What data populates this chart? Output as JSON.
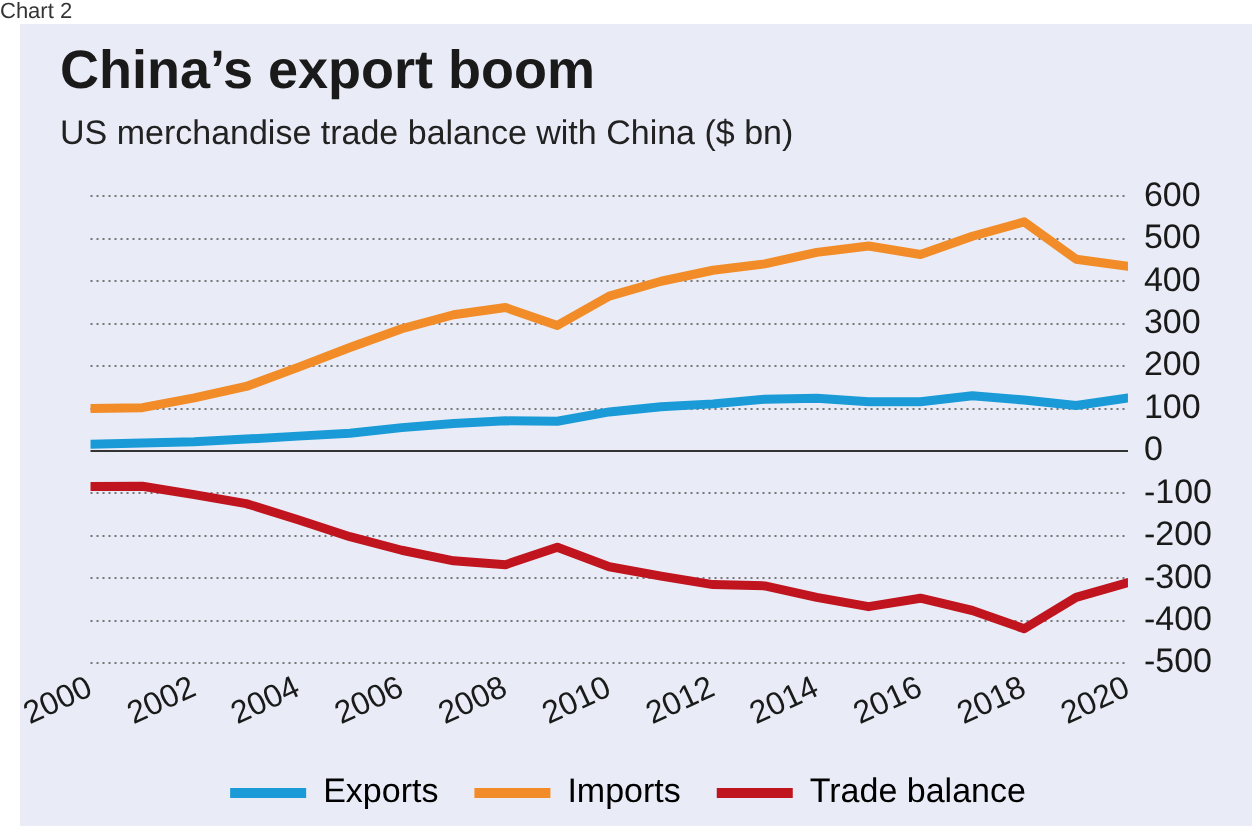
{
  "chart_data": {
    "type": "line",
    "title": "China’s export boom",
    "subtitle": "US merchandise trade balance with China ($ bn)",
    "annotations": [
      "Chart 2"
    ],
    "x": [
      2000,
      2001,
      2002,
      2003,
      2004,
      2005,
      2006,
      2007,
      2008,
      2009,
      2010,
      2011,
      2012,
      2013,
      2014,
      2015,
      2016,
      2017,
      2018,
      2019,
      2020
    ],
    "series": [
      {
        "name": "Exports",
        "color": "#1a9bd7",
        "values": [
          16,
          19,
          22,
          28,
          35,
          42,
          55,
          65,
          71,
          70,
          92,
          104,
          111,
          122,
          124,
          116,
          116,
          130,
          120,
          107,
          125
        ]
      },
      {
        "name": "Imports",
        "color": "#f28c28",
        "values": [
          100,
          102,
          125,
          152,
          197,
          244,
          288,
          321,
          338,
          296,
          365,
          400,
          426,
          441,
          468,
          483,
          463,
          506,
          540,
          452,
          435
        ]
      },
      {
        "name": "Trade balance",
        "color": "#c0141e",
        "values": [
          -84,
          -83,
          -103,
          -124,
          -162,
          -202,
          -234,
          -259,
          -268,
          -227,
          -273,
          -295,
          -315,
          -318,
          -345,
          -367,
          -347,
          -376,
          -419,
          -345,
          -310
        ]
      }
    ],
    "xlim": [
      2000,
      2020
    ],
    "xticks": [
      2000,
      2002,
      2004,
      2006,
      2008,
      2010,
      2012,
      2014,
      2016,
      2018,
      2020
    ],
    "ylim": [
      -500,
      600
    ],
    "yticks": [
      -500,
      -400,
      -300,
      -200,
      -100,
      0,
      100,
      200,
      300,
      400,
      500,
      600
    ],
    "grid": "y",
    "legend": "bottom",
    "marker": "none",
    "line_style": "solid"
  }
}
